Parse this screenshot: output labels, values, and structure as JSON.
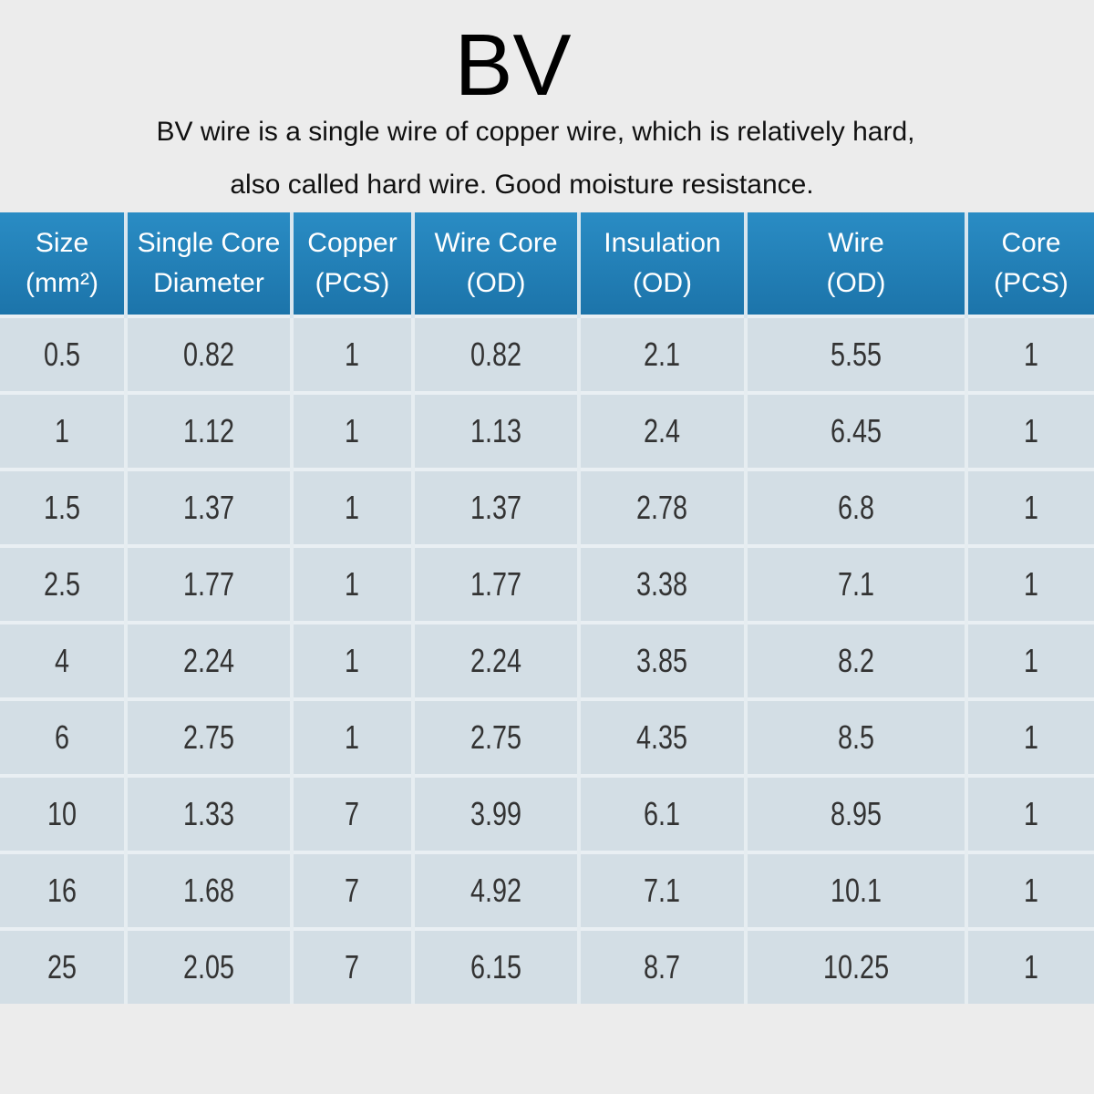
{
  "title": "BV",
  "description": [
    "BV wire is a single wire of copper wire, which is relatively hard,",
    "also called hard wire. Good moisture resistance."
  ],
  "table": {
    "headers": [
      [
        "Size",
        "(mm²)"
      ],
      [
        "Single Core",
        "Diameter"
      ],
      [
        "Copper",
        "(PCS)"
      ],
      [
        "Wire Core",
        "(OD)"
      ],
      [
        "Insulation",
        "(OD)"
      ],
      [
        "Wire",
        "(OD)"
      ],
      [
        "Core",
        "(PCS)"
      ]
    ],
    "rows": [
      [
        0.5,
        0.82,
        1,
        0.82,
        2.1,
        5.55,
        1
      ],
      [
        1,
        1.12,
        1,
        1.13,
        2.4,
        6.45,
        1
      ],
      [
        1.5,
        1.37,
        1,
        1.37,
        2.78,
        6.8,
        1
      ],
      [
        2.5,
        1.77,
        1,
        1.77,
        3.38,
        7.1,
        1
      ],
      [
        4,
        2.24,
        1,
        2.24,
        3.85,
        8.2,
        1
      ],
      [
        6,
        2.75,
        1,
        2.75,
        4.35,
        8.5,
        1
      ],
      [
        10,
        1.33,
        7,
        3.99,
        6.1,
        8.95,
        1
      ],
      [
        16,
        1.68,
        7,
        4.92,
        7.1,
        10.1,
        1
      ],
      [
        25,
        2.05,
        7,
        6.15,
        8.7,
        10.25,
        1
      ]
    ]
  }
}
